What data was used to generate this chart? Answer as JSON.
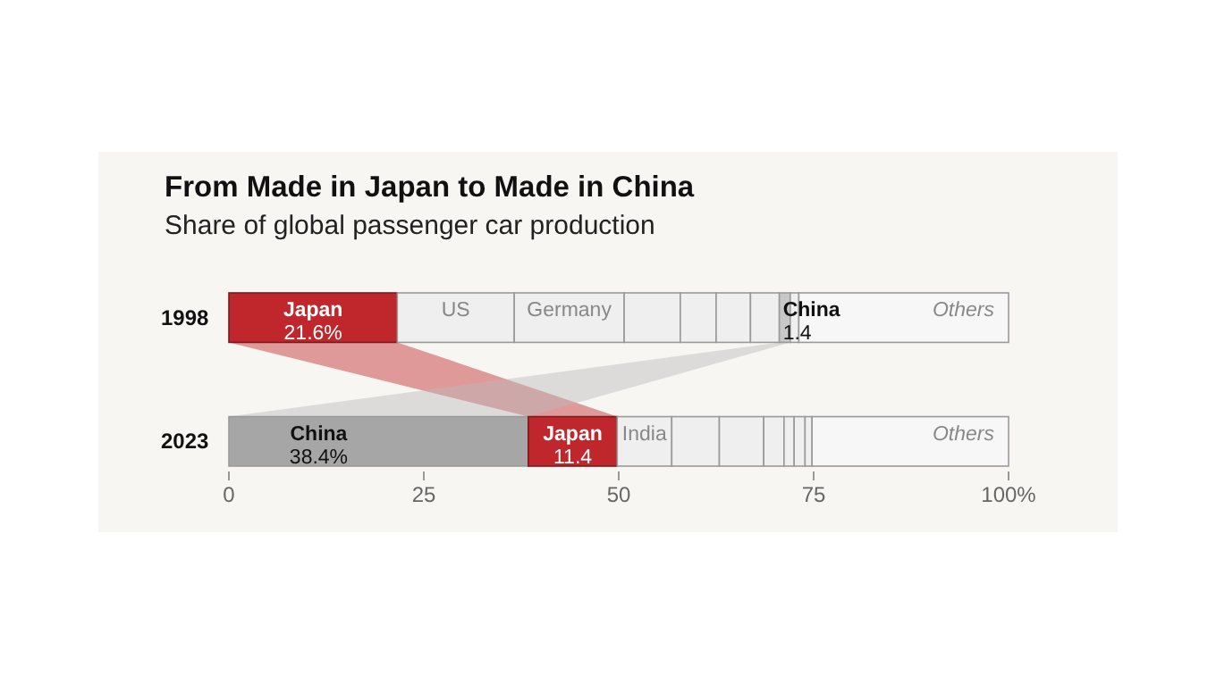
{
  "chart_data": {
    "type": "bar",
    "orientation": "horizontal",
    "stacked": true,
    "title": "From Made in Japan to Made in China",
    "subtitle": "Share of global passenger car production",
    "categories": [
      "1998",
      "2023"
    ],
    "xlim": [
      0,
      100
    ],
    "xticks": [
      0,
      25,
      50,
      75,
      {
        "value": 100,
        "label": "100%"
      }
    ],
    "grid": false,
    "series": [
      {
        "values": [
          21.6,
          38.4
        ],
        "colors": [
          "#c0272d",
          "#a6a6a6"
        ],
        "value_labels": [
          "Japan\n21.6%",
          "China\n38.4%"
        ]
      },
      {
        "values": [
          15.0,
          11.4
        ],
        "colors": [
          "#efefef",
          "#c0272d"
        ],
        "value_labels": [
          "US",
          "Japan\n11.4"
        ]
      },
      {
        "values": [
          14.1,
          7.0
        ],
        "colors": [
          "#efefef",
          "#efefef"
        ],
        "value_labels": [
          "Germany",
          "India"
        ]
      },
      {
        "values": [
          7.2,
          6.1
        ],
        "colors": [
          "#efefef",
          "#efefef"
        ],
        "value_labels": [
          null,
          null
        ]
      },
      {
        "values": [
          4.6,
          5.7
        ],
        "colors": [
          "#efefef",
          "#efefef"
        ],
        "value_labels": [
          null,
          null
        ]
      },
      {
        "values": [
          4.4,
          2.6
        ],
        "colors": [
          "#efefef",
          "#efefef"
        ],
        "value_labels": [
          null,
          null
        ]
      },
      {
        "values": [
          3.7,
          1.3
        ],
        "colors": [
          "#efefef",
          "#efefef"
        ],
        "value_labels": [
          null,
          null
        ]
      },
      {
        "values": [
          1.4,
          1.4
        ],
        "colors": [
          "#c8c8c8",
          "#efefef"
        ],
        "value_labels": [
          "China\n1.4",
          null
        ]
      },
      {
        "values": [
          1.1,
          0.9
        ],
        "colors": [
          "#efefef",
          "#efefef"
        ],
        "value_labels": [
          null,
          null
        ]
      },
      {
        "values": [
          26.9,
          25.2
        ],
        "colors": [
          "#f7f7f7",
          "#f7f7f7"
        ],
        "value_labels": [
          "Others",
          "Others"
        ]
      }
    ]
  }
}
